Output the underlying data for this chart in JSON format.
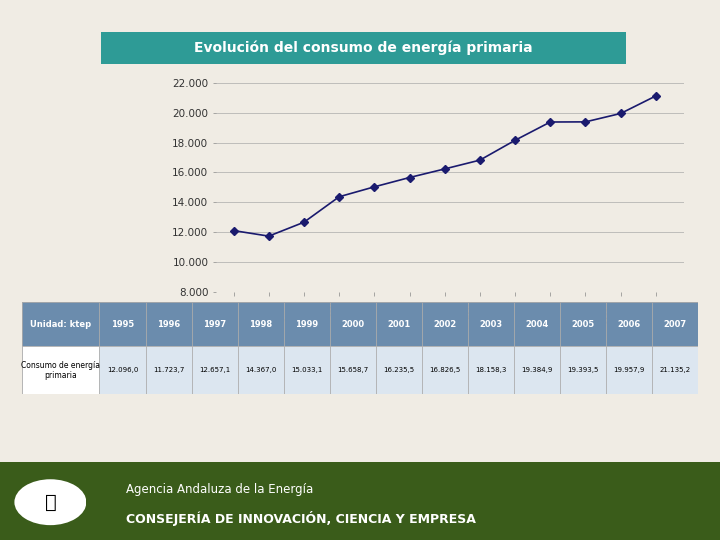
{
  "title": "Evolución del consumo de energía primaria",
  "title_bg_color": "#2E9B96",
  "title_text_color": "#ffffff",
  "years": [
    1995,
    1996,
    1997,
    1998,
    1999,
    2000,
    2001,
    2002,
    2003,
    2004,
    2005,
    2006,
    2007
  ],
  "values": [
    12096.0,
    11723.7,
    12657.1,
    14367.0,
    15033.1,
    15658.7,
    16235.5,
    16826.5,
    18158.3,
    19384.9,
    19393.5,
    19957.9,
    21135.2
  ],
  "ylim": [
    8000,
    22500
  ],
  "yticks": [
    8000,
    10000,
    12000,
    14000,
    16000,
    18000,
    20000,
    22000
  ],
  "ytick_labels": [
    "8.000",
    "10.000",
    "12.000",
    "14.000",
    "16.000",
    "18.000",
    "20.000",
    "22.000"
  ],
  "line_color": "#1a1a6e",
  "marker": "D",
  "marker_color": "#1a1a6e",
  "marker_size": 4,
  "line_width": 1.2,
  "table_header_bg": "#6b8cad",
  "table_header_text": "#ffffff",
  "table_row1_bg": "#dce6f0",
  "table_row2_bg": "#ffffff",
  "table_border_color": "#aaaaaa",
  "table_label": "Unidad: ktep",
  "table_row_label": "Consumo de energía\nprimaria",
  "footer_bg_color": "#3a5c1a",
  "footer_text1": "Agencia Andaluza de la Energía",
  "footer_text2": "CONSEJERÍA DE INNOVACIÓN, CIENCIA Y EMPRESA",
  "bg_color": "#f0ece4",
  "chart_bg_color": "#f0ece4",
  "grid_color": "#aaaaaa",
  "table_values_display": [
    "12.096,0",
    "11.723,7",
    "12.657,1",
    "14.367,0",
    "15.033,1",
    "15.658,7",
    "16.235,5",
    "16.826,5",
    "18.158,3",
    "19.384,9",
    "19.393,5",
    "19.957,9",
    "21.135,2"
  ]
}
